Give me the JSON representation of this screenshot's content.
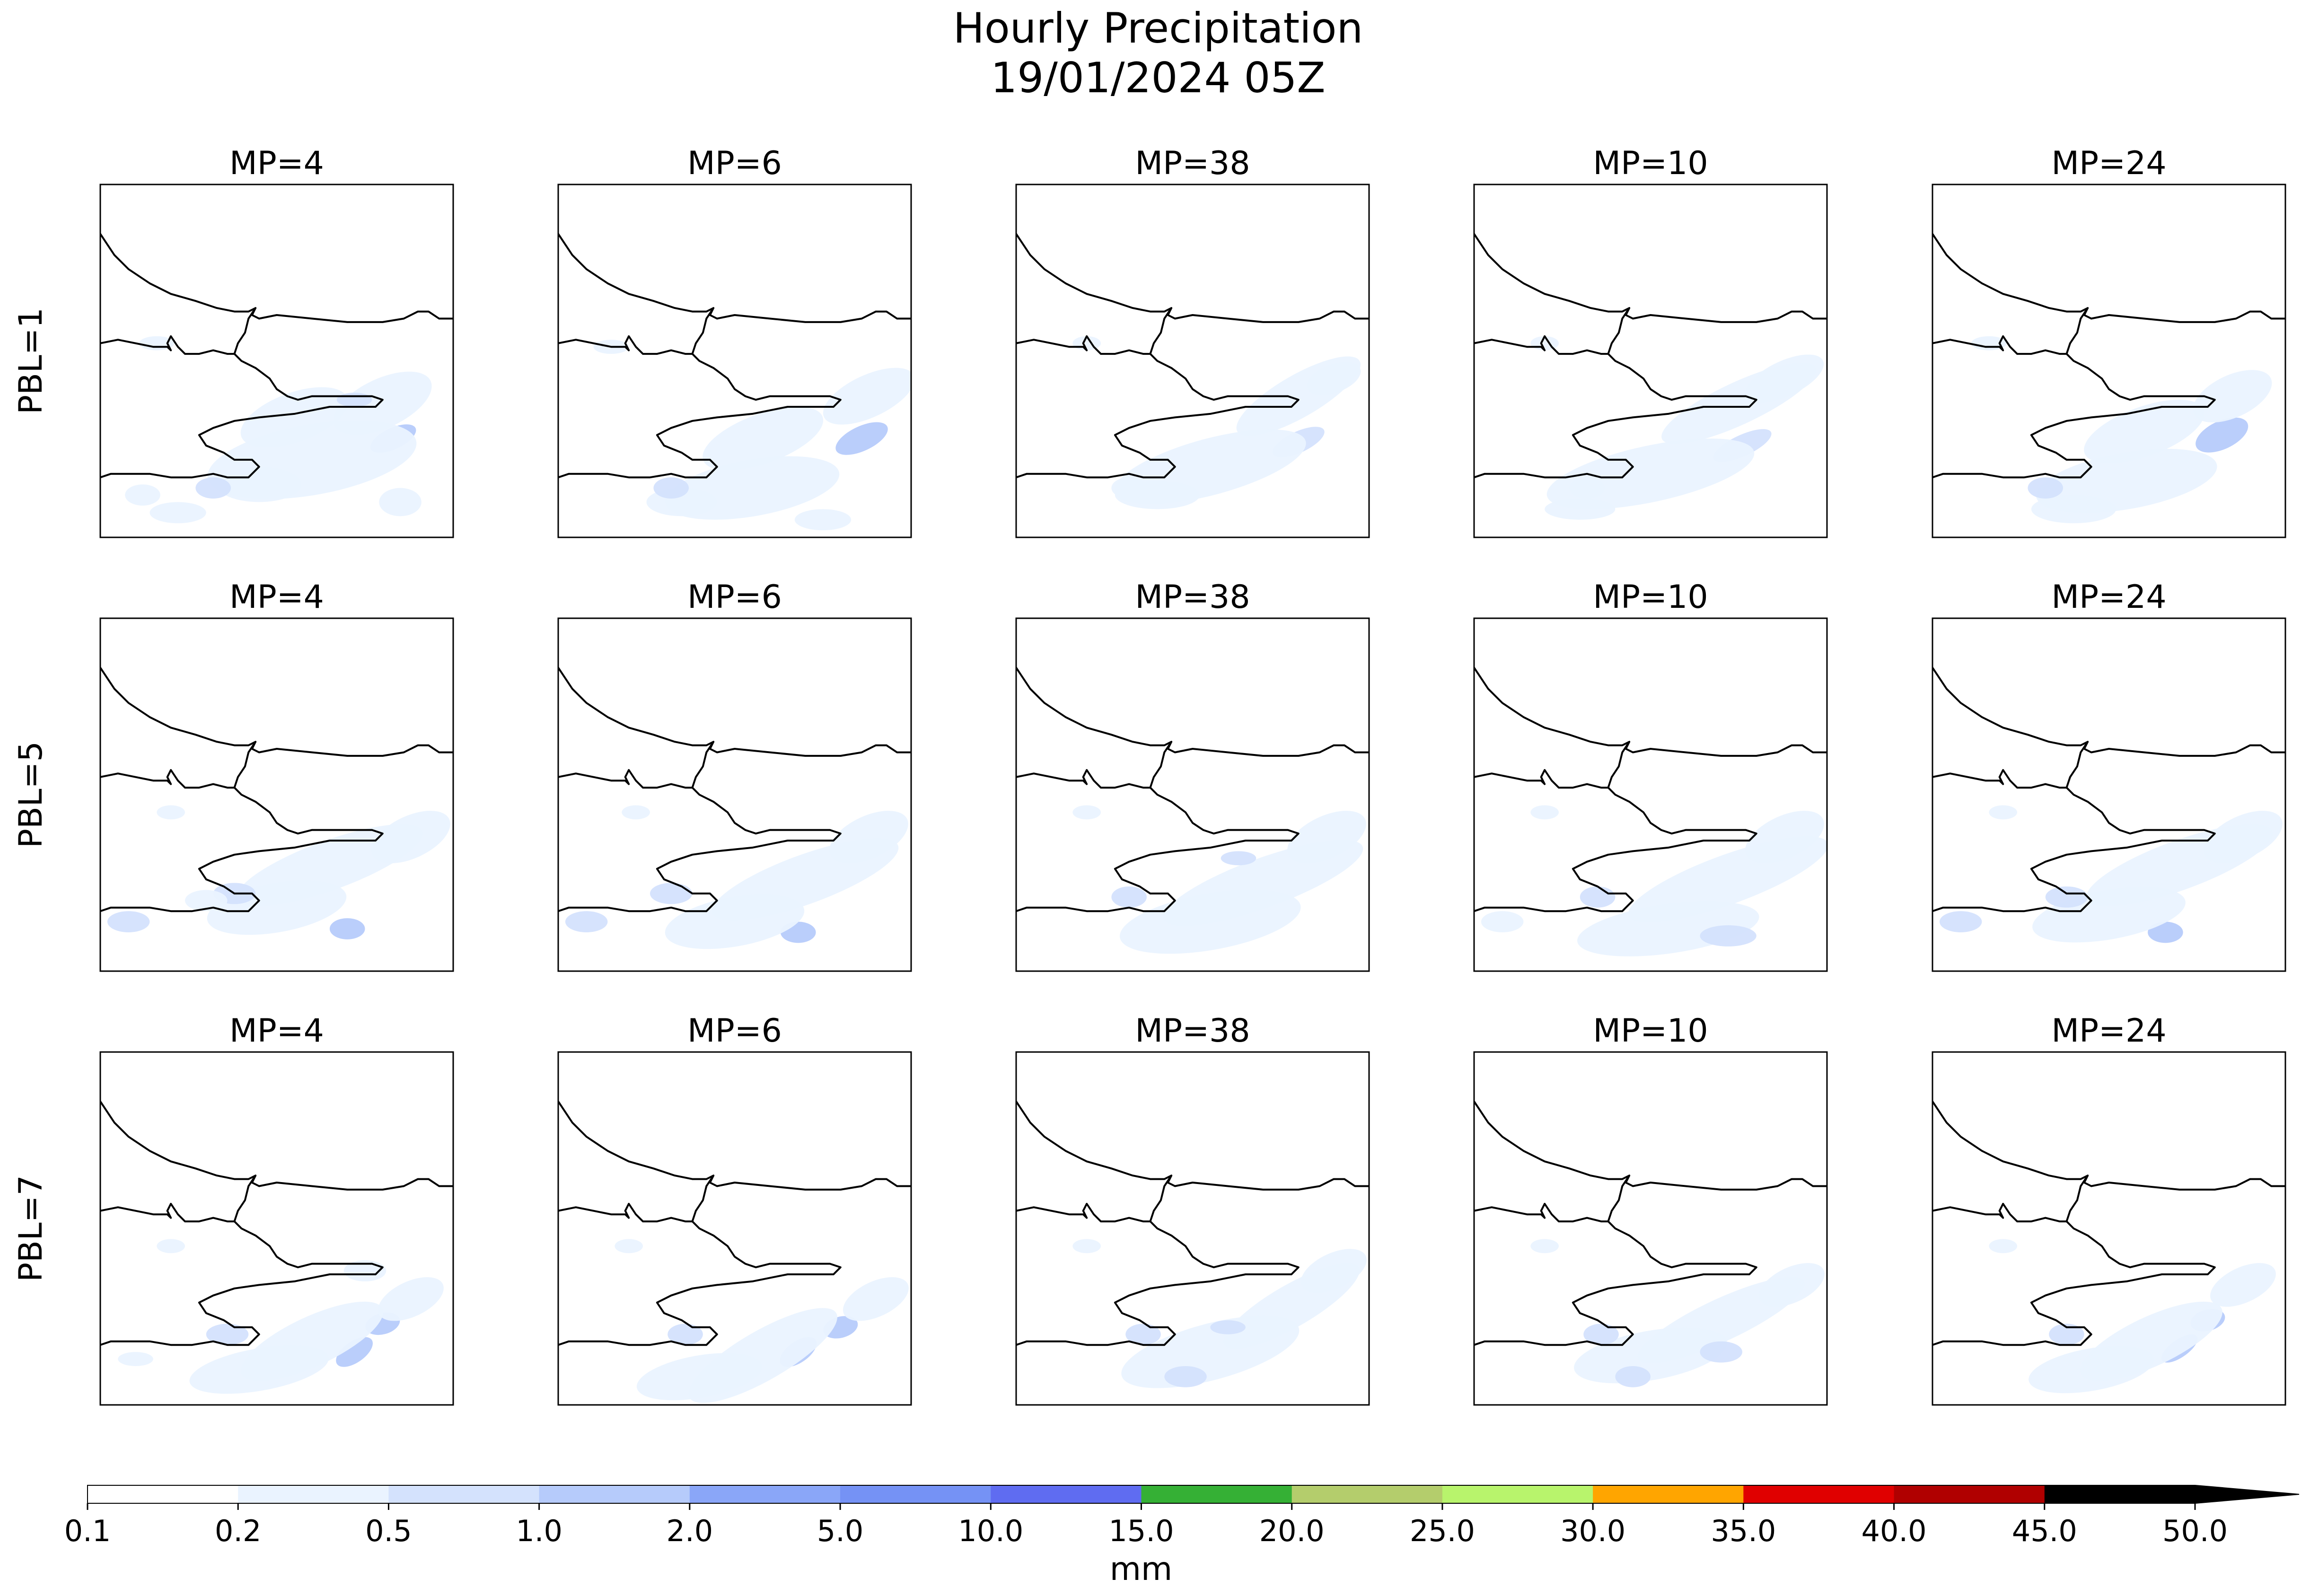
{
  "figure": {
    "title_line1": "Hourly Precipitation",
    "title_line2": "19/01/2024 05Z"
  },
  "chart_data": {
    "type": "heatmap",
    "title": "Hourly Precipitation 19/01/2024 05Z",
    "columns": [
      "MP=4",
      "MP=6",
      "MP=38",
      "MP=10",
      "MP=24"
    ],
    "rows": [
      "PBL=1",
      "PBL=5",
      "PBL=7"
    ],
    "colorbar": {
      "label": "mm",
      "extend": "max",
      "ticks": [
        "0.1",
        "0.2",
        "0.5",
        "1.0",
        "2.0",
        "5.0",
        "10.0",
        "15.0",
        "20.0",
        "25.0",
        "30.0",
        "35.0",
        "40.0",
        "45.0",
        "50.0"
      ],
      "colors": [
        "#ffffff",
        "#eaf3ff",
        "#d4e2fd",
        "#b6cbfb",
        "#8aa6f8",
        "#7592f5",
        "#5f6cf1",
        "#35b035",
        "#b4cd6c",
        "#b8f46c",
        "#ffa500",
        "#e00000",
        "#b00000",
        "#000000"
      ],
      "extend_color": "#000000"
    },
    "panels": [
      {
        "pbl": "PBL=1",
        "mp": "MP=4",
        "max_class": "5.0-10.0",
        "blobs": [
          [
            0.83,
            0.72,
            0.07,
            0.03,
            -25,
            3
          ],
          [
            0.55,
            0.66,
            0.16,
            0.07,
            -20,
            1
          ],
          [
            0.6,
            0.78,
            0.3,
            0.1,
            -10,
            1
          ],
          [
            0.45,
            0.85,
            0.12,
            0.05,
            0,
            1
          ],
          [
            0.8,
            0.62,
            0.15,
            0.07,
            -25,
            1
          ],
          [
            0.32,
            0.86,
            0.05,
            0.03,
            0,
            2
          ],
          [
            0.22,
            0.93,
            0.08,
            0.03,
            0,
            1
          ],
          [
            0.85,
            0.9,
            0.06,
            0.04,
            0,
            1
          ],
          [
            0.12,
            0.88,
            0.05,
            0.03,
            0,
            1
          ],
          [
            0.16,
            0.45,
            0.05,
            0.02,
            0,
            1
          ],
          [
            0.72,
            0.61,
            0.05,
            0.02,
            0,
            2
          ]
        ]
      },
      {
        "pbl": "PBL=1",
        "mp": "MP=6",
        "max_class": "5.0-10.0",
        "blobs": [
          [
            0.86,
            0.72,
            0.08,
            0.035,
            -25,
            3
          ],
          [
            0.58,
            0.72,
            0.18,
            0.07,
            -20,
            1
          ],
          [
            0.55,
            0.86,
            0.25,
            0.08,
            -10,
            1
          ],
          [
            0.35,
            0.9,
            0.1,
            0.04,
            0,
            1
          ],
          [
            0.88,
            0.6,
            0.14,
            0.06,
            -25,
            1
          ],
          [
            0.32,
            0.86,
            0.05,
            0.03,
            0,
            2
          ],
          [
            0.75,
            0.95,
            0.08,
            0.03,
            0,
            1
          ],
          [
            0.15,
            0.46,
            0.05,
            0.02,
            0,
            1
          ]
        ]
      },
      {
        "pbl": "PBL=1",
        "mp": "MP=38",
        "max_class": "2.0-5.0",
        "blobs": [
          [
            0.8,
            0.73,
            0.08,
            0.03,
            -25,
            2
          ],
          [
            0.8,
            0.6,
            0.2,
            0.06,
            -30,
            1
          ],
          [
            0.55,
            0.8,
            0.28,
            0.08,
            -15,
            1
          ],
          [
            0.4,
            0.88,
            0.12,
            0.04,
            0,
            1
          ],
          [
            0.32,
            0.86,
            0.05,
            0.03,
            0,
            1
          ],
          [
            0.9,
            0.55,
            0.08,
            0.04,
            -20,
            1
          ],
          [
            0.2,
            0.45,
            0.04,
            0.02,
            0,
            1
          ]
        ]
      },
      {
        "pbl": "PBL=1",
        "mp": "MP=10",
        "max_class": "2.0-5.0",
        "blobs": [
          [
            0.76,
            0.74,
            0.09,
            0.03,
            -25,
            2
          ],
          [
            0.75,
            0.62,
            0.24,
            0.06,
            -25,
            1
          ],
          [
            0.5,
            0.82,
            0.3,
            0.08,
            -12,
            1
          ],
          [
            0.88,
            0.55,
            0.12,
            0.05,
            -25,
            1
          ],
          [
            0.32,
            0.86,
            0.05,
            0.03,
            0,
            1
          ],
          [
            0.3,
            0.92,
            0.1,
            0.03,
            0,
            1
          ],
          [
            0.2,
            0.45,
            0.04,
            0.02,
            0,
            1
          ]
        ]
      },
      {
        "pbl": "PBL=1",
        "mp": "MP=24",
        "max_class": "5.0-10.0",
        "blobs": [
          [
            0.82,
            0.71,
            0.08,
            0.04,
            -25,
            3
          ],
          [
            0.6,
            0.7,
            0.18,
            0.07,
            -20,
            1
          ],
          [
            0.55,
            0.84,
            0.26,
            0.08,
            -10,
            1
          ],
          [
            0.4,
            0.92,
            0.12,
            0.04,
            0,
            1
          ],
          [
            0.85,
            0.6,
            0.12,
            0.06,
            -25,
            1
          ],
          [
            0.32,
            0.86,
            0.05,
            0.03,
            0,
            2
          ],
          [
            0.16,
            0.45,
            0.05,
            0.02,
            0,
            1
          ]
        ]
      },
      {
        "pbl": "PBL=5",
        "mp": "MP=4",
        "max_class": "2.0-5.0",
        "blobs": [
          [
            0.7,
            0.88,
            0.05,
            0.03,
            0,
            3
          ],
          [
            0.65,
            0.7,
            0.28,
            0.07,
            -20,
            1
          ],
          [
            0.5,
            0.82,
            0.2,
            0.07,
            -10,
            1
          ],
          [
            0.88,
            0.62,
            0.12,
            0.06,
            -25,
            1
          ],
          [
            0.38,
            0.78,
            0.06,
            0.03,
            0,
            2
          ],
          [
            0.08,
            0.86,
            0.06,
            0.03,
            0,
            2
          ],
          [
            0.2,
            0.55,
            0.04,
            0.02,
            0,
            1
          ],
          [
            0.3,
            0.8,
            0.06,
            0.03,
            0,
            1
          ]
        ]
      },
      {
        "pbl": "PBL=5",
        "mp": "MP=6",
        "max_class": "2.0-5.0",
        "blobs": [
          [
            0.68,
            0.89,
            0.05,
            0.03,
            0,
            3
          ],
          [
            0.7,
            0.74,
            0.28,
            0.07,
            -20,
            1
          ],
          [
            0.5,
            0.86,
            0.2,
            0.07,
            -10,
            1
          ],
          [
            0.88,
            0.62,
            0.12,
            0.06,
            -25,
            1
          ],
          [
            0.32,
            0.78,
            0.06,
            0.03,
            0,
            2
          ],
          [
            0.08,
            0.86,
            0.06,
            0.03,
            0,
            2
          ],
          [
            0.22,
            0.55,
            0.04,
            0.02,
            0,
            1
          ]
        ]
      },
      {
        "pbl": "PBL=5",
        "mp": "MP=38",
        "max_class": "1.0-2.0",
        "blobs": [
          [
            0.7,
            0.75,
            0.3,
            0.07,
            -20,
            1
          ],
          [
            0.55,
            0.86,
            0.26,
            0.08,
            -10,
            1
          ],
          [
            0.88,
            0.62,
            0.12,
            0.06,
            -25,
            1
          ],
          [
            0.32,
            0.79,
            0.05,
            0.03,
            0,
            2
          ],
          [
            0.63,
            0.68,
            0.05,
            0.02,
            0,
            2
          ],
          [
            0.2,
            0.55,
            0.04,
            0.02,
            0,
            1
          ]
        ]
      },
      {
        "pbl": "PBL=5",
        "mp": "MP=10",
        "max_class": "1.0-2.0",
        "blobs": [
          [
            0.72,
            0.74,
            0.3,
            0.07,
            -20,
            1
          ],
          [
            0.55,
            0.88,
            0.26,
            0.07,
            -8,
            1
          ],
          [
            0.88,
            0.62,
            0.12,
            0.06,
            -25,
            1
          ],
          [
            0.35,
            0.79,
            0.05,
            0.03,
            0,
            2
          ],
          [
            0.72,
            0.9,
            0.08,
            0.03,
            0,
            2
          ],
          [
            0.08,
            0.86,
            0.06,
            0.03,
            0,
            1
          ],
          [
            0.2,
            0.55,
            0.04,
            0.02,
            0,
            1
          ]
        ]
      },
      {
        "pbl": "PBL=5",
        "mp": "MP=24",
        "max_class": "2.0-5.0",
        "blobs": [
          [
            0.66,
            0.89,
            0.05,
            0.03,
            0,
            3
          ],
          [
            0.7,
            0.7,
            0.28,
            0.07,
            -20,
            1
          ],
          [
            0.5,
            0.84,
            0.22,
            0.07,
            -10,
            1
          ],
          [
            0.88,
            0.62,
            0.12,
            0.06,
            -25,
            1
          ],
          [
            0.38,
            0.79,
            0.06,
            0.03,
            0,
            2
          ],
          [
            0.08,
            0.86,
            0.06,
            0.03,
            0,
            2
          ],
          [
            0.2,
            0.55,
            0.04,
            0.02,
            0,
            1
          ]
        ]
      },
      {
        "pbl": "PBL=7",
        "mp": "MP=4",
        "max_class": "2.0-5.0",
        "blobs": [
          [
            0.8,
            0.77,
            0.05,
            0.03,
            -15,
            3
          ],
          [
            0.72,
            0.85,
            0.06,
            0.03,
            -35,
            3
          ],
          [
            0.6,
            0.82,
            0.22,
            0.07,
            -25,
            1
          ],
          [
            0.45,
            0.9,
            0.2,
            0.06,
            -10,
            1
          ],
          [
            0.88,
            0.7,
            0.1,
            0.05,
            -25,
            1
          ],
          [
            0.36,
            0.8,
            0.06,
            0.03,
            0,
            2
          ],
          [
            0.2,
            0.55,
            0.04,
            0.02,
            0,
            1
          ],
          [
            0.1,
            0.87,
            0.05,
            0.02,
            0,
            1
          ],
          [
            0.75,
            0.62,
            0.06,
            0.03,
            0,
            1
          ]
        ]
      },
      {
        "pbl": "PBL=7",
        "mp": "MP=6",
        "max_class": "2.0-5.0",
        "blobs": [
          [
            0.8,
            0.78,
            0.05,
            0.03,
            -15,
            3
          ],
          [
            0.68,
            0.85,
            0.06,
            0.03,
            -35,
            3
          ],
          [
            0.58,
            0.86,
            0.24,
            0.07,
            -30,
            1
          ],
          [
            0.4,
            0.92,
            0.18,
            0.06,
            -10,
            1
          ],
          [
            0.9,
            0.7,
            0.1,
            0.05,
            -25,
            1
          ],
          [
            0.36,
            0.8,
            0.05,
            0.03,
            0,
            2
          ],
          [
            0.2,
            0.55,
            0.04,
            0.02,
            0,
            1
          ]
        ]
      },
      {
        "pbl": "PBL=7",
        "mp": "MP=38",
        "max_class": "1.0-2.0",
        "blobs": [
          [
            0.78,
            0.72,
            0.22,
            0.06,
            -30,
            1
          ],
          [
            0.55,
            0.85,
            0.26,
            0.08,
            -15,
            1
          ],
          [
            0.48,
            0.92,
            0.06,
            0.03,
            0,
            2
          ],
          [
            0.9,
            0.62,
            0.1,
            0.05,
            -25,
            1
          ],
          [
            0.36,
            0.8,
            0.05,
            0.03,
            0,
            2
          ],
          [
            0.6,
            0.78,
            0.05,
            0.02,
            0,
            2
          ],
          [
            0.2,
            0.55,
            0.04,
            0.02,
            0,
            1
          ]
        ]
      },
      {
        "pbl": "PBL=7",
        "mp": "MP=10",
        "max_class": "1.0-2.0",
        "blobs": [
          [
            0.7,
            0.76,
            0.26,
            0.06,
            -25,
            1
          ],
          [
            0.5,
            0.86,
            0.22,
            0.07,
            -10,
            1
          ],
          [
            0.45,
            0.92,
            0.05,
            0.03,
            0,
            2
          ],
          [
            0.9,
            0.66,
            0.1,
            0.05,
            -25,
            1
          ],
          [
            0.36,
            0.8,
            0.05,
            0.03,
            0,
            2
          ],
          [
            0.7,
            0.85,
            0.06,
            0.03,
            0,
            2
          ],
          [
            0.2,
            0.55,
            0.04,
            0.02,
            0,
            1
          ]
        ]
      },
      {
        "pbl": "PBL=7",
        "mp": "MP=24",
        "max_class": "2.0-5.0",
        "blobs": [
          [
            0.78,
            0.76,
            0.05,
            0.03,
            -15,
            3
          ],
          [
            0.7,
            0.84,
            0.06,
            0.025,
            -35,
            3
          ],
          [
            0.62,
            0.82,
            0.22,
            0.07,
            -25,
            1
          ],
          [
            0.45,
            0.9,
            0.18,
            0.06,
            -10,
            1
          ],
          [
            0.88,
            0.66,
            0.1,
            0.05,
            -25,
            1
          ],
          [
            0.38,
            0.8,
            0.05,
            0.03,
            0,
            2
          ],
          [
            0.2,
            0.55,
            0.04,
            0.02,
            0,
            1
          ]
        ]
      }
    ]
  }
}
